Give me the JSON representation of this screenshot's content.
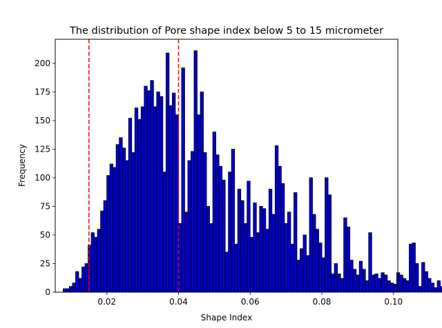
{
  "chart_data": {
    "type": "bar",
    "title": "The distribution of Pore shape index below 5 to 15 micrometer",
    "xlabel": "Shape Index",
    "ylabel": "Frequency",
    "xlim": [
      0.0056,
      0.1012
    ],
    "ylim": [
      0,
      221
    ],
    "xticks": [
      0.02,
      0.04,
      0.06,
      0.08,
      0.1
    ],
    "xtick_labels": [
      "0.02",
      "0.04",
      "0.06",
      "0.08",
      "0.10"
    ],
    "yticks": [
      0,
      25,
      50,
      75,
      100,
      125,
      150,
      175,
      200
    ],
    "ytick_labels": [
      "0",
      "25",
      "50",
      "75",
      "100",
      "125",
      "150",
      "175",
      "200"
    ],
    "bar_color": "#0000cc",
    "edge_color": "#000000",
    "bin_start": 0.0078,
    "bin_width": 0.00087,
    "values": [
      3,
      3,
      5,
      8,
      18,
      12,
      22,
      25,
      41,
      52,
      48,
      55,
      71,
      80,
      102,
      112,
      109,
      129,
      135,
      126,
      115,
      152,
      122,
      161,
      151,
      162,
      180,
      176,
      185,
      162,
      175,
      171,
      105,
      209,
      163,
      174,
      155,
      60,
      196,
      70,
      115,
      123,
      211,
      155,
      175,
      122,
      75,
      60,
      140,
      120,
      110,
      98,
      35,
      105,
      125,
      42,
      90,
      80,
      60,
      97,
      48,
      78,
      52,
      75,
      73,
      55,
      90,
      68,
      128,
      110,
      95,
      60,
      70,
      42,
      87,
      28,
      38,
      50,
      32,
      100,
      68,
      55,
      43,
      30,
      100,
      85,
      16,
      25,
      16,
      12,
      65,
      57,
      28,
      20,
      15,
      27,
      20,
      10,
      52,
      15,
      16,
      12,
      17,
      15,
      10,
      8,
      7,
      17,
      15,
      12,
      10,
      42,
      43,
      25,
      5,
      26,
      18,
      12,
      8,
      4,
      10,
      5,
      15,
      12,
      8,
      5,
      2,
      4,
      7,
      5,
      6,
      8,
      5,
      13,
      15,
      5,
      8,
      6,
      2,
      5,
      3,
      2,
      5,
      7
    ],
    "vlines": [
      {
        "x": 0.015,
        "color": "#ff0000",
        "style": "dashed"
      },
      {
        "x": 0.04,
        "color": "#ff0000",
        "style": "dashed"
      }
    ]
  }
}
